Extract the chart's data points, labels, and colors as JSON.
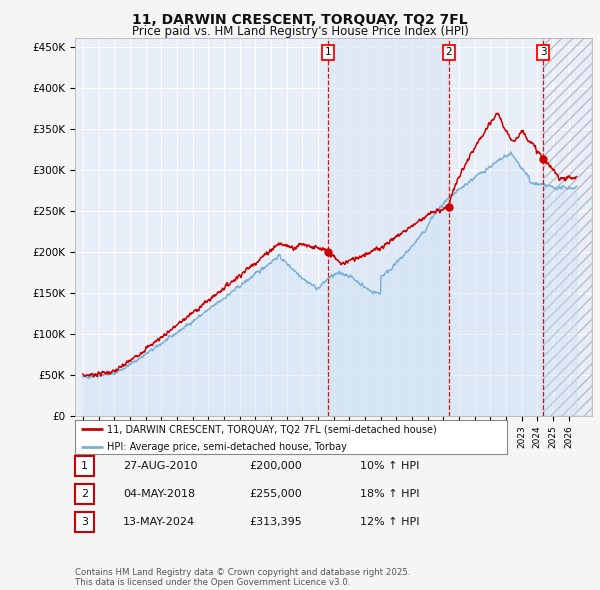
{
  "title_line1": "11, DARWIN CRESCENT, TORQUAY, TQ2 7FL",
  "title_line2": "Price paid vs. HM Land Registry's House Price Index (HPI)",
  "ylabel_ticks": [
    "£0",
    "£50K",
    "£100K",
    "£150K",
    "£200K",
    "£250K",
    "£300K",
    "£350K",
    "£400K",
    "£450K"
  ],
  "ytick_values": [
    0,
    50000,
    100000,
    150000,
    200000,
    250000,
    300000,
    350000,
    400000,
    450000
  ],
  "ylim": [
    0,
    460000
  ],
  "xlim_start": 1994.5,
  "xlim_end": 2027.5,
  "red_line_color": "#cc0000",
  "blue_line_color": "#7bafd4",
  "vline_color": "#cc0000",
  "sale_dates": [
    2010.65,
    2018.34,
    2024.37
  ],
  "sale_prices": [
    200000,
    255000,
    313395
  ],
  "sale_labels": [
    "1",
    "2",
    "3"
  ],
  "legend_label_red": "11, DARWIN CRESCENT, TORQUAY, TQ2 7FL (semi-detached house)",
  "legend_label_blue": "HPI: Average price, semi-detached house, Torbay",
  "table_rows": [
    {
      "num": "1",
      "date": "27-AUG-2010",
      "price": "£200,000",
      "hpi": "10% ↑ HPI"
    },
    {
      "num": "2",
      "date": "04-MAY-2018",
      "price": "£255,000",
      "hpi": "18% ↑ HPI"
    },
    {
      "num": "3",
      "date": "13-MAY-2024",
      "price": "£313,395",
      "hpi": "12% ↑ HPI"
    }
  ],
  "footnote": "Contains HM Land Registry data © Crown copyright and database right 2025.\nThis data is licensed under the Open Government Licence v3.0."
}
